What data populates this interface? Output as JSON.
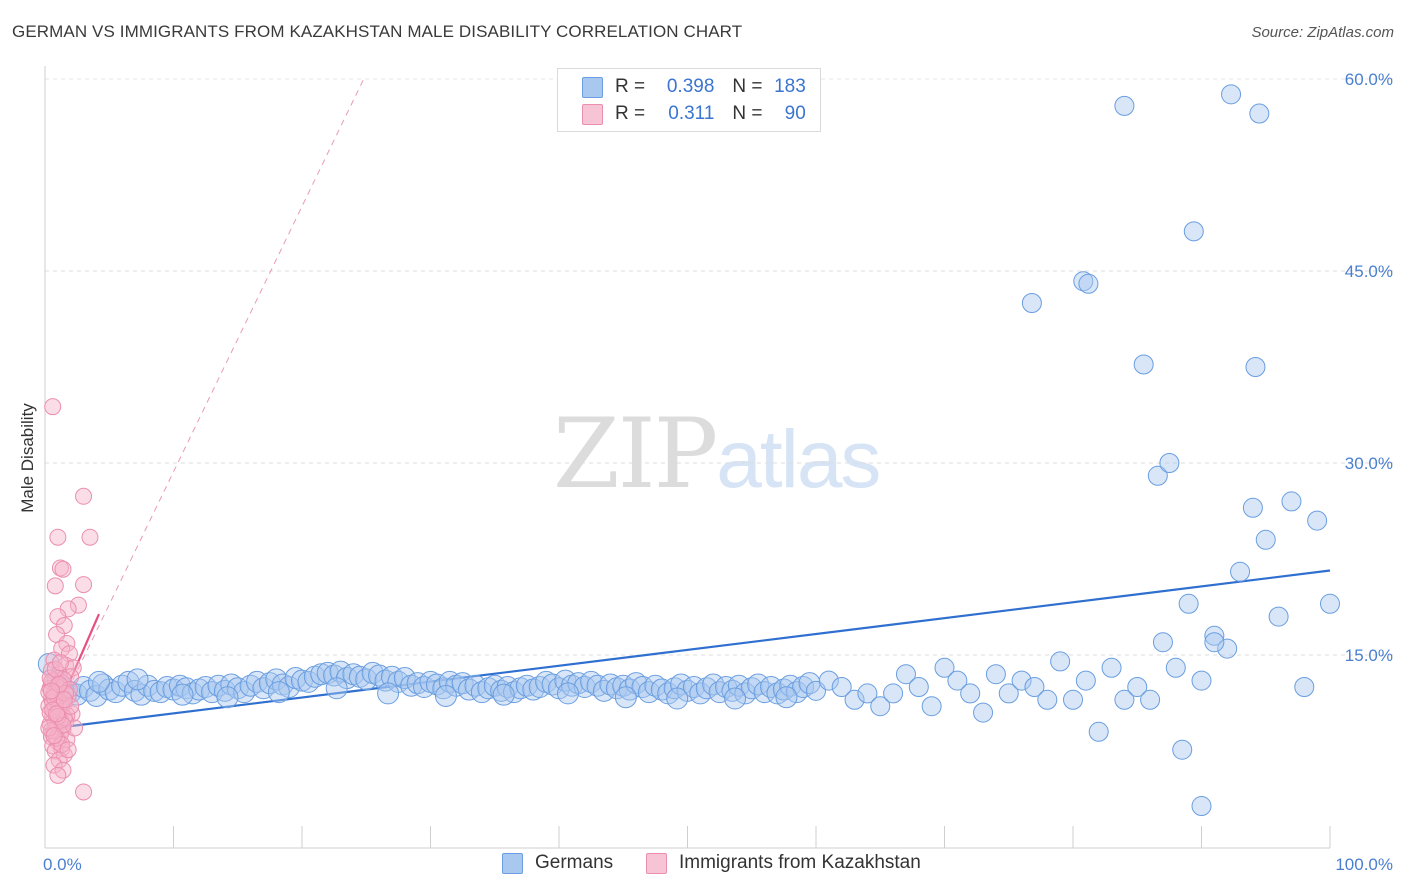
{
  "title": "GERMAN VS IMMIGRANTS FROM KAZAKHSTAN MALE DISABILITY CORRELATION CHART",
  "source": "Source: ZipAtlas.com",
  "watermark": {
    "zip": "ZIP",
    "atlas": "atlas"
  },
  "legend_top": [
    {
      "r_label": "R =",
      "r_value": "0.398",
      "n_label": "N =",
      "n_value": "183"
    },
    {
      "r_label": "R =",
      "r_value": "0.311",
      "n_label": "N =",
      "n_value": "90"
    }
  ],
  "legend_bottom": [
    "Germans",
    "Immigrants from Kazakhstan"
  ],
  "colors": {
    "blue": "#4a84d6",
    "blue_fill": "#a9c8ef",
    "pink": "#e8628f",
    "pink_fill": "#f6b4ca",
    "axis_text": "#4a7fd0"
  },
  "chart_data": {
    "type": "scatter",
    "title": "GERMAN VS IMMIGRANTS FROM KAZAKHSTAN MALE DISABILITY CORRELATION CHART",
    "xlabel": "",
    "ylabel": "Male Disability",
    "xlim": [
      0,
      100
    ],
    "ylim": [
      0,
      61
    ],
    "x_ticks": [
      "0.0%",
      "100.0%"
    ],
    "y_ticks": [
      {
        "value": 15,
        "label": "15.0%"
      },
      {
        "value": 30,
        "label": "30.0%"
      },
      {
        "value": 45,
        "label": "45.0%"
      },
      {
        "value": 60,
        "label": "60.0%"
      }
    ],
    "grid": true,
    "legend_position": "top-center",
    "series": [
      {
        "name": "Germans",
        "color": "#4a84d6",
        "R": 0.398,
        "N": 183,
        "trendline": {
          "x": [
            0,
            100
          ],
          "y": [
            9.2,
            21.6
          ]
        },
        "points": [
          [
            0.3,
            14.3
          ],
          [
            1,
            13.0
          ],
          [
            1.5,
            12.4
          ],
          [
            2,
            12.1
          ],
          [
            2.5,
            11.9
          ],
          [
            3,
            12.5
          ],
          [
            3.5,
            12.2
          ],
          [
            4,
            11.8
          ],
          [
            4.5,
            12.7
          ],
          [
            5,
            12.3
          ],
          [
            5.5,
            12.1
          ],
          [
            6,
            12.6
          ],
          [
            6.5,
            12.9
          ],
          [
            7,
            12.2
          ],
          [
            7.5,
            11.9
          ],
          [
            8,
            12.6
          ],
          [
            8.5,
            12.2
          ],
          [
            9,
            12.1
          ],
          [
            9.5,
            12.5
          ],
          [
            10,
            12.3
          ],
          [
            10.5,
            12.6
          ],
          [
            11,
            12.4
          ],
          [
            11.5,
            12.0
          ],
          [
            12,
            12.3
          ],
          [
            12.5,
            12.5
          ],
          [
            13,
            12.1
          ],
          [
            13.5,
            12.6
          ],
          [
            14,
            12.2
          ],
          [
            14.5,
            12.7
          ],
          [
            15,
            12.4
          ],
          [
            15.5,
            12.1
          ],
          [
            16,
            12.6
          ],
          [
            16.5,
            12.9
          ],
          [
            17,
            12.4
          ],
          [
            17.5,
            12.8
          ],
          [
            18,
            13.1
          ],
          [
            18.5,
            12.7
          ],
          [
            19,
            12.5
          ],
          [
            19.5,
            13.2
          ],
          [
            20,
            13.0
          ],
          [
            20.5,
            12.9
          ],
          [
            21,
            13.3
          ],
          [
            21.5,
            13.5
          ],
          [
            22,
            13.6
          ],
          [
            22.5,
            13.4
          ],
          [
            23,
            13.7
          ],
          [
            23.5,
            13.2
          ],
          [
            24,
            13.5
          ],
          [
            24.5,
            13.3
          ],
          [
            25,
            13.1
          ],
          [
            25.5,
            13.6
          ],
          [
            26,
            13.4
          ],
          [
            26.5,
            13.0
          ],
          [
            27,
            13.3
          ],
          [
            27.5,
            12.9
          ],
          [
            28,
            13.2
          ],
          [
            28.5,
            12.6
          ],
          [
            29,
            12.8
          ],
          [
            29.5,
            12.5
          ],
          [
            30,
            12.9
          ],
          [
            30.5,
            12.7
          ],
          [
            31,
            12.4
          ],
          [
            31.5,
            12.9
          ],
          [
            32,
            12.6
          ],
          [
            32.5,
            12.8
          ],
          [
            33,
            12.3
          ],
          [
            33.5,
            12.6
          ],
          [
            34,
            12.1
          ],
          [
            34.5,
            12.4
          ],
          [
            35,
            12.6
          ],
          [
            35.5,
            12.2
          ],
          [
            36,
            12.5
          ],
          [
            36.5,
            12.1
          ],
          [
            37,
            12.4
          ],
          [
            37.5,
            12.6
          ],
          [
            38,
            12.3
          ],
          [
            38.5,
            12.5
          ],
          [
            39,
            12.9
          ],
          [
            39.5,
            12.7
          ],
          [
            40,
            12.4
          ],
          [
            40.5,
            13.0
          ],
          [
            41,
            12.6
          ],
          [
            41.5,
            12.8
          ],
          [
            42,
            12.5
          ],
          [
            42.5,
            12.9
          ],
          [
            43,
            12.6
          ],
          [
            43.5,
            12.2
          ],
          [
            44,
            12.7
          ],
          [
            44.5,
            12.4
          ],
          [
            45,
            12.6
          ],
          [
            45.5,
            12.3
          ],
          [
            46,
            12.8
          ],
          [
            46.5,
            12.5
          ],
          [
            47,
            12.1
          ],
          [
            47.5,
            12.6
          ],
          [
            48,
            12.3
          ],
          [
            48.5,
            12.0
          ],
          [
            49,
            12.4
          ],
          [
            49.5,
            12.7
          ],
          [
            50,
            12.2
          ],
          [
            50.5,
            12.5
          ],
          [
            51,
            12.0
          ],
          [
            51.5,
            12.4
          ],
          [
            52,
            12.7
          ],
          [
            52.5,
            12.1
          ],
          [
            53,
            12.5
          ],
          [
            53.5,
            12.2
          ],
          [
            54,
            12.6
          ],
          [
            54.5,
            12.0
          ],
          [
            55,
            12.4
          ],
          [
            55.5,
            12.7
          ],
          [
            56,
            12.1
          ],
          [
            56.5,
            12.5
          ],
          [
            57,
            12.0
          ],
          [
            57.5,
            12.3
          ],
          [
            58,
            12.6
          ],
          [
            58.5,
            12.1
          ],
          [
            59,
            12.5
          ],
          [
            59.5,
            12.8
          ],
          [
            60,
            12.2
          ],
          [
            1.2,
            11.6
          ],
          [
            4.2,
            12.9
          ],
          [
            7.2,
            13.1
          ],
          [
            10.7,
            11.9
          ],
          [
            14.2,
            11.7
          ],
          [
            18.2,
            12.1
          ],
          [
            22.7,
            12.4
          ],
          [
            26.7,
            12.0
          ],
          [
            31.2,
            11.8
          ],
          [
            35.7,
            11.9
          ],
          [
            40.7,
            12.0
          ],
          [
            45.2,
            11.7
          ],
          [
            49.2,
            11.6
          ],
          [
            53.7,
            11.6
          ],
          [
            57.7,
            11.7
          ],
          [
            61,
            13.0
          ],
          [
            62,
            12.5
          ],
          [
            63,
            11.5
          ],
          [
            64,
            12.0
          ],
          [
            65,
            11.0
          ],
          [
            66,
            12.0
          ],
          [
            67,
            13.5
          ],
          [
            68,
            12.5
          ],
          [
            69,
            11.0
          ],
          [
            70,
            14.0
          ],
          [
            71,
            13.0
          ],
          [
            72,
            12.0
          ],
          [
            73,
            10.5
          ],
          [
            74,
            13.5
          ],
          [
            75,
            12.0
          ],
          [
            76,
            13.0
          ],
          [
            77,
            12.5
          ],
          [
            78,
            11.5
          ],
          [
            79,
            14.5
          ],
          [
            80,
            11.5
          ],
          [
            81,
            13.0
          ],
          [
            82,
            9.0
          ],
          [
            83,
            14.0
          ],
          [
            84,
            11.5
          ],
          [
            85,
            12.5
          ],
          [
            86,
            11.5
          ],
          [
            87,
            16.0
          ],
          [
            88,
            14.0
          ],
          [
            89,
            19.0
          ],
          [
            90,
            13.0
          ],
          [
            91,
            16.5
          ],
          [
            92,
            15.5
          ],
          [
            93,
            21.5
          ],
          [
            94,
            26.5
          ],
          [
            95,
            24.0
          ],
          [
            96,
            18.0
          ],
          [
            97,
            27.0
          ],
          [
            98,
            12.5
          ],
          [
            99,
            25.5
          ],
          [
            100,
            19.0
          ],
          [
            76.8,
            42.5
          ],
          [
            80.8,
            44.2
          ],
          [
            81.2,
            44.0
          ],
          [
            84,
            57.9
          ],
          [
            85.5,
            37.7
          ],
          [
            86.6,
            29.0
          ],
          [
            87.5,
            30.0
          ],
          [
            89.4,
            48.1
          ],
          [
            92.3,
            58.8
          ],
          [
            94.5,
            57.3
          ],
          [
            94.2,
            37.5
          ],
          [
            90,
            3.2
          ],
          [
            88.5,
            7.6
          ],
          [
            91,
            16.0
          ]
        ]
      },
      {
        "name": "Immigrants from Kazakhstan",
        "color": "#e8628f",
        "R": 0.311,
        "N": 90,
        "trendline": {
          "x": [
            0.3,
            4.2
          ],
          "y": [
            9.2,
            18.2
          ]
        },
        "trendline_extended": {
          "x": [
            0.3,
            24.8
          ],
          "y": [
            9.2,
            60.0
          ]
        },
        "points": [
          [
            0.6,
            34.4
          ],
          [
            3.0,
            27.4
          ],
          [
            3.5,
            24.2
          ],
          [
            1.0,
            24.2
          ],
          [
            1.2,
            21.8
          ],
          [
            1.4,
            21.7
          ],
          [
            3.0,
            20.5
          ],
          [
            0.8,
            20.4
          ],
          [
            2.6,
            18.9
          ],
          [
            1.8,
            18.6
          ],
          [
            1.0,
            18.0
          ],
          [
            1.5,
            17.3
          ],
          [
            0.9,
            16.6
          ],
          [
            1.7,
            15.9
          ],
          [
            1.3,
            15.5
          ],
          [
            1.9,
            15.1
          ],
          [
            0.7,
            14.6
          ],
          [
            1.6,
            14.2
          ],
          [
            2.2,
            14.0
          ],
          [
            0.5,
            13.8
          ],
          [
            1.1,
            13.5
          ],
          [
            2.0,
            13.3
          ],
          [
            0.6,
            13.0
          ],
          [
            1.4,
            12.8
          ],
          [
            0.9,
            12.6
          ],
          [
            0.4,
            12.4
          ],
          [
            1.2,
            12.2
          ],
          [
            0.7,
            12.0
          ],
          [
            1.8,
            11.8
          ],
          [
            0.5,
            11.6
          ],
          [
            1.0,
            11.4
          ],
          [
            1.5,
            11.2
          ],
          [
            0.3,
            11.0
          ],
          [
            0.8,
            10.8
          ],
          [
            1.3,
            10.6
          ],
          [
            2.1,
            10.4
          ],
          [
            0.6,
            10.2
          ],
          [
            1.1,
            10.0
          ],
          [
            1.6,
            9.8
          ],
          [
            0.4,
            9.6
          ],
          [
            0.9,
            9.4
          ],
          [
            1.4,
            9.2
          ],
          [
            0.7,
            9.0
          ],
          [
            1.2,
            8.8
          ],
          [
            0.5,
            8.6
          ],
          [
            1.7,
            8.4
          ],
          [
            1.0,
            8.2
          ],
          [
            0.6,
            7.9
          ],
          [
            1.3,
            7.7
          ],
          [
            0.8,
            7.5
          ],
          [
            1.5,
            7.2
          ],
          [
            1.1,
            6.8
          ],
          [
            0.7,
            6.4
          ],
          [
            1.4,
            6.0
          ],
          [
            1.0,
            5.6
          ],
          [
            3.0,
            4.3
          ],
          [
            0.5,
            12.9
          ],
          [
            0.9,
            11.9
          ],
          [
            1.3,
            11.1
          ],
          [
            1.7,
            10.3
          ],
          [
            0.4,
            10.5
          ],
          [
            0.8,
            9.7
          ],
          [
            1.2,
            9.9
          ],
          [
            2.3,
            9.3
          ],
          [
            0.6,
            11.3
          ],
          [
            1.0,
            12.5
          ],
          [
            1.4,
            13.1
          ],
          [
            1.9,
            12.3
          ],
          [
            0.3,
            12.1
          ],
          [
            0.7,
            11.7
          ],
          [
            1.1,
            10.9
          ],
          [
            1.5,
            10.1
          ],
          [
            0.5,
            9.1
          ],
          [
            0.9,
            8.5
          ],
          [
            1.3,
            8.0
          ],
          [
            1.8,
            7.6
          ],
          [
            0.4,
            13.2
          ],
          [
            0.8,
            13.9
          ],
          [
            1.2,
            14.4
          ],
          [
            1.6,
            12.0
          ],
          [
            2.0,
            11.0
          ],
          [
            0.6,
            10.7
          ],
          [
            1.0,
            10.2
          ],
          [
            1.4,
            9.5
          ],
          [
            0.3,
            9.3
          ],
          [
            0.7,
            8.7
          ],
          [
            1.1,
            12.7
          ],
          [
            1.5,
            11.5
          ],
          [
            0.5,
            12.2
          ],
          [
            0.9,
            10.4
          ]
        ]
      }
    ]
  }
}
